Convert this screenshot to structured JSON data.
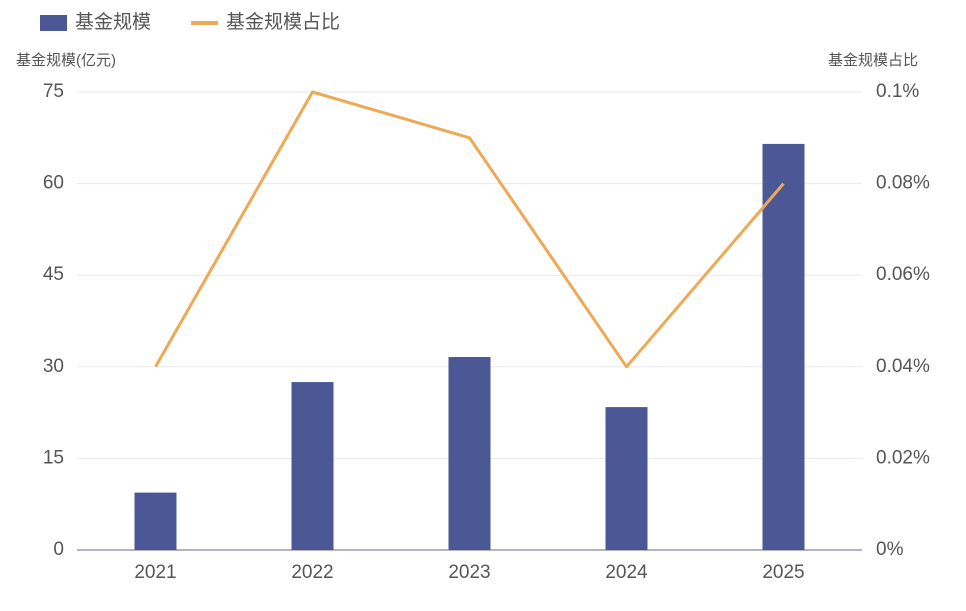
{
  "chart_data": {
    "type": "bar",
    "categories": [
      "2021",
      "2022",
      "2023",
      "2024",
      "2025"
    ],
    "series": [
      {
        "name": "基金规模",
        "type": "bar",
        "color": "#4c5796",
        "values": [
          9.4,
          27.5,
          31.6,
          23.4,
          66.5
        ]
      },
      {
        "name": "基金规模占比",
        "type": "line",
        "color": "#eea956",
        "axis": "y2",
        "values": [
          0.04,
          0.1,
          0.09,
          0.04,
          0.08
        ]
      }
    ],
    "ylabel": "基金规模(亿元)",
    "y2label": "基金规模占比",
    "ylim": [
      0,
      75
    ],
    "yticks": [
      0,
      15,
      30,
      45,
      60,
      75
    ],
    "y2lim": [
      0,
      0.1
    ],
    "y2ticks": [
      {
        "value": 0,
        "label": "0%"
      },
      {
        "value": 0.02,
        "label": "0.02%"
      },
      {
        "value": 0.04,
        "label": "0.04%"
      },
      {
        "value": 0.06,
        "label": "0.06%"
      },
      {
        "value": 0.08,
        "label": "0.08%"
      },
      {
        "value": 0.1,
        "label": "0.1%"
      }
    ],
    "grid": true
  }
}
